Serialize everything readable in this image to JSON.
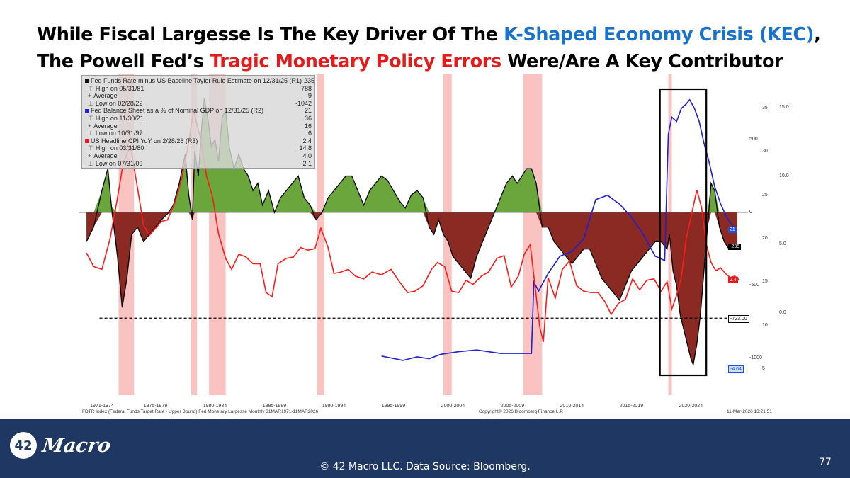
{
  "title": {
    "line1_prefix": "While Fiscal Largesse Is The Key Driver Of The ",
    "line1_blue": "K-Shaped Economy Crisis (KEC)",
    "line1_suffix": ",",
    "line2_prefix": "The Powell Fed’s ",
    "line2_red": "Tragic Monetary Policy Errors",
    "line2_suffix": " Were/Are A Key Contributor"
  },
  "legend": {
    "rows": [
      {
        "pre": "",
        "label": "Fed Funds Rate minus US Baseline Taylor Rule Estimate on 12/31/25 (R1)",
        "value": "-235",
        "swatch": "#111111",
        "main": true
      },
      {
        "pre": "⊤",
        "label": "High on 05/31/81",
        "value": "788",
        "main": false
      },
      {
        "pre": "+",
        "label": "Average",
        "value": "-9",
        "main": false
      },
      {
        "pre": "⊥",
        "label": "Low on 02/28/22",
        "value": "-1042",
        "main": false
      },
      {
        "pre": "",
        "label": "Fed Balance Sheet as a % of Nominal GDP on 12/31/25 (R2)",
        "value": "21",
        "swatch": "#1f1fd6",
        "main": true
      },
      {
        "pre": "⊤",
        "label": "High on 11/30/21",
        "value": "36",
        "main": false
      },
      {
        "pre": "+",
        "label": "Average",
        "value": "16",
        "main": false
      },
      {
        "pre": "⊥",
        "label": "Low on 10/31/97",
        "value": "6",
        "main": false
      },
      {
        "pre": "",
        "label": "US Headline CPI YoY on 2/28/26 (R3)",
        "value": "2.4",
        "swatch": "#e31b1b",
        "main": true
      },
      {
        "pre": "⊤",
        "label": "High on 03/31/80",
        "value": "14.8",
        "main": false
      },
      {
        "pre": "+",
        "label": "Average",
        "value": "4.0",
        "main": false
      },
      {
        "pre": "⊥",
        "label": "Low on 07/31/09",
        "value": "-2.1",
        "main": false
      }
    ]
  },
  "axes": {
    "r1_ticks": [
      "500",
      "0",
      "-500",
      "-1000"
    ],
    "r2_ticks": [
      "35",
      "30",
      "25",
      "20",
      "15",
      "10",
      "5"
    ],
    "r3_ticks": [
      "15.0",
      "10.0",
      "5.0",
      "0.0"
    ],
    "tags": {
      "r2_last": "21",
      "r1_last": "-235",
      "r3_last": "2.4",
      "low_line": "-723.00",
      "r3_bottom": "-4.04"
    }
  },
  "colors": {
    "positive_fill": "#6aa63c",
    "negative_fill": "#8b2a22",
    "r1_line": "#000000",
    "r2_line": "#1f1fd6",
    "r3_line": "#ff1a1a",
    "recession": "#f6a9a6",
    "blue_tag": "#1f4fe0",
    "red_tag": "#e31b1b",
    "accent_blue": "#1a73c9",
    "accent_red": "#e31b1b",
    "footer_bg": "#1f3863"
  },
  "x_labels": [
    "1971-1974",
    "1975-1979",
    "1980-1984",
    "1985-1989",
    "1990-1994",
    "1995-1999",
    "2000-2004",
    "2005-2009",
    "2010-2014",
    "2015-2019",
    "2020-2024"
  ],
  "bottom_meta": {
    "left": "FDTR Index (Federal Funds Target Rate - Upper Bound) Fed Monetary Largesse Monthly 31MAR1971-11MAR2026",
    "center": "Copyright© 2026 Bloomberg Finance L.P.",
    "right": "11-Mar-2026 13:21:51"
  },
  "footer": {
    "logo_number": "42",
    "logo_word": "Macro",
    "source": "© 42 Macro LLC. Data Source: Bloomberg.",
    "page_number": "77"
  },
  "chart_data": {
    "type": "line",
    "series": [
      {
        "name": "Fed Funds Rate minus US Baseline Taylor Rule Estimate (R1)",
        "axis": "R1",
        "x": [
          1971.2,
          1971.8,
          1972.5,
          1973.0,
          1973.3,
          1973.8,
          1974.2,
          1974.6,
          1975.0,
          1975.5,
          1976.0,
          1976.5,
          1977.0,
          1977.5,
          1978.0,
          1978.5,
          1979.0,
          1979.5,
          1979.8,
          1980.1,
          1980.3,
          1980.6,
          1980.9,
          1981.1,
          1981.4,
          1981.7,
          1982.0,
          1982.3,
          1982.6,
          1982.9,
          1983.2,
          1983.6,
          1984.0,
          1984.4,
          1984.8,
          1985.2,
          1985.6,
          1986.0,
          1986.5,
          1987.0,
          1987.5,
          1988.0,
          1988.5,
          1989.0,
          1989.5,
          1990.0,
          1990.5,
          1991.0,
          1991.5,
          1992.0,
          1992.5,
          1993.0,
          1993.5,
          1994.0,
          1994.5,
          1995.0,
          1995.5,
          1996.0,
          1996.5,
          1997.0,
          1997.5,
          1998.0,
          1998.5,
          1999.0,
          1999.5,
          2000.0,
          2000.4,
          2000.8,
          2001.2,
          2001.6,
          2002.0,
          2002.5,
          2003.0,
          2003.5,
          2004.0,
          2004.5,
          2005.0,
          2005.5,
          2006.0,
          2006.5,
          2007.0,
          2007.4,
          2007.8,
          2008.2,
          2008.6,
          2009.0,
          2009.5,
          2010.0,
          2010.5,
          2011.0,
          2011.5,
          2012.0,
          2012.5,
          2013.0,
          2013.5,
          2014.0,
          2014.5,
          2015.0,
          2015.5,
          2016.0,
          2016.5,
          2017.0,
          2017.5,
          2018.0,
          2018.5,
          2019.0,
          2019.5,
          2020.0,
          2020.2,
          2020.5,
          2020.8,
          2021.1,
          2021.4,
          2021.7,
          2022.0,
          2022.2,
          2022.5,
          2022.8,
          2023.1,
          2023.4,
          2023.7,
          2024.0,
          2024.4,
          2024.8,
          2025.2,
          2025.6,
          2025.9
        ],
        "values": [
          -200,
          -100,
          150,
          300,
          40,
          -300,
          -650,
          -450,
          -150,
          -100,
          -200,
          -150,
          -100,
          -50,
          -10,
          50,
          200,
          400,
          120,
          -50,
          420,
          250,
          600,
          780,
          650,
          450,
          500,
          350,
          650,
          700,
          450,
          300,
          400,
          300,
          250,
          150,
          200,
          50,
          150,
          0,
          100,
          150,
          200,
          250,
          100,
          50,
          -50,
          0,
          100,
          150,
          200,
          250,
          250,
          150,
          50,
          150,
          200,
          250,
          220,
          150,
          80,
          30,
          120,
          150,
          100,
          -100,
          -150,
          -50,
          -150,
          -200,
          -300,
          -350,
          -400,
          -450,
          -300,
          -200,
          -100,
          0,
          100,
          200,
          250,
          200,
          250,
          300,
          300,
          200,
          -100,
          -100,
          -200,
          -250,
          -300,
          -350,
          -300,
          -250,
          -250,
          -350,
          -450,
          -500,
          -550,
          -600,
          -500,
          -400,
          -350,
          -300,
          -250,
          -200,
          -200,
          -250,
          -150,
          -400,
          -500,
          -700,
          -800,
          -900,
          -1000,
          -1042,
          -900,
          -700,
          -400,
          -100,
          200,
          150,
          -100,
          -200,
          -250,
          -250,
          -235
        ]
      },
      {
        "name": "Fed Balance Sheet as a % of Nominal GDP (R2)",
        "axis": "R2",
        "x": [
          1996.0,
          1997.8,
          1999.0,
          2000.0,
          2001.0,
          2002.5,
          2004.0,
          2006.0,
          2008.6,
          2008.8,
          2009.2,
          2010.0,
          2011.0,
          2012.0,
          2013.0,
          2014.0,
          2015.0,
          2016.0,
          2017.0,
          2018.0,
          2019.0,
          2019.8,
          2020.1,
          2020.4,
          2020.8,
          2021.2,
          2021.6,
          2021.9,
          2022.3,
          2022.7,
          2023.1,
          2023.5,
          2024.0,
          2024.5,
          2025.0,
          2025.5,
          2025.9
        ],
        "values": [
          6.5,
          6.0,
          6.4,
          6.2,
          6.7,
          7.0,
          7.2,
          6.8,
          6.8,
          15.0,
          14.0,
          16.0,
          18.0,
          18.5,
          20.0,
          24.5,
          25.0,
          24.0,
          22.5,
          20.5,
          18.0,
          17.5,
          32.0,
          34.0,
          33.5,
          35.0,
          35.5,
          36.0,
          35.0,
          33.5,
          31.0,
          29.0,
          26.0,
          24.0,
          22.5,
          21.5,
          21.0
        ]
      },
      {
        "name": "US Headline CPI YoY (R3)",
        "axis": "R3",
        "x": [
          1971.2,
          1971.8,
          1972.5,
          1973.2,
          1973.8,
          1974.3,
          1974.9,
          1975.5,
          1976.0,
          1976.5,
          1977.0,
          1977.5,
          1978.0,
          1978.6,
          1979.2,
          1979.7,
          1980.2,
          1980.8,
          1981.3,
          1981.8,
          1982.3,
          1982.9,
          1983.4,
          1984.0,
          1984.6,
          1985.2,
          1985.8,
          1986.3,
          1986.8,
          1987.3,
          1988.0,
          1988.6,
          1989.2,
          1989.8,
          1990.4,
          1990.9,
          1991.5,
          1992.0,
          1992.6,
          1993.2,
          1993.8,
          1994.5,
          1995.2,
          1996.0,
          1996.8,
          1997.5,
          1998.2,
          1998.8,
          1999.5,
          2000.2,
          2000.7,
          2001.3,
          2001.9,
          2002.5,
          2003.1,
          2003.7,
          2004.4,
          2005.0,
          2005.7,
          2006.3,
          2006.9,
          2007.5,
          2008.0,
          2008.5,
          2008.9,
          2009.3,
          2009.6,
          2010.0,
          2010.6,
          2011.2,
          2011.8,
          2012.4,
          2013.0,
          2013.6,
          2014.2,
          2014.8,
          2015.3,
          2015.9,
          2016.5,
          2017.1,
          2017.7,
          2018.3,
          2018.9,
          2019.5,
          2020.0,
          2020.4,
          2020.8,
          2021.2,
          2021.6,
          2022.0,
          2022.5,
          2022.9,
          2023.3,
          2023.7,
          2024.1,
          2024.5,
          2024.9,
          2025.3,
          2025.7,
          2026.1
        ],
        "values": [
          4.4,
          3.4,
          3.2,
          5.5,
          8.4,
          11.0,
          12.2,
          9.1,
          6.4,
          5.7,
          6.2,
          6.7,
          6.8,
          8.0,
          9.8,
          12.0,
          14.8,
          12.7,
          10.0,
          8.5,
          5.8,
          4.0,
          3.2,
          4.3,
          4.1,
          3.6,
          3.6,
          1.5,
          1.2,
          3.6,
          4.0,
          4.1,
          4.8,
          4.6,
          4.7,
          6.2,
          4.8,
          2.9,
          3.0,
          3.2,
          2.7,
          2.5,
          3.0,
          2.8,
          3.2,
          2.3,
          1.5,
          1.6,
          2.0,
          3.2,
          3.7,
          3.4,
          1.6,
          1.5,
          2.4,
          2.1,
          2.7,
          3.0,
          4.0,
          4.2,
          1.9,
          2.7,
          4.3,
          5.0,
          2.0,
          -1.0,
          -2.1,
          2.6,
          1.1,
          3.2,
          3.8,
          2.0,
          1.6,
          1.5,
          1.5,
          0.8,
          -0.1,
          0.7,
          1.0,
          2.5,
          1.7,
          2.4,
          2.5,
          1.6,
          2.3,
          0.3,
          1.3,
          2.6,
          5.4,
          7.0,
          9.0,
          7.7,
          5.0,
          3.7,
          3.1,
          3.3,
          2.9,
          2.6,
          2.7,
          2.4
        ]
      }
    ],
    "r1_range": [
      -1250,
      950
    ],
    "r2_range": [
      2,
      39
    ],
    "r3_range": [
      -6,
      17.5
    ],
    "x_range": [
      1970.6,
      2026.8
    ],
    "recessions": [
      [
        1973.9,
        1975.2
      ],
      [
        1980.0,
        1980.5
      ],
      [
        1981.5,
        1982.9
      ],
      [
        1990.6,
        1991.2
      ],
      [
        2001.2,
        2001.9
      ],
      [
        2007.9,
        2009.5
      ],
      [
        2020.1,
        2020.4
      ]
    ],
    "reference_line": -723,
    "highlight_box": [
      2019.4,
      2023.3
    ],
    "grid": false
  }
}
